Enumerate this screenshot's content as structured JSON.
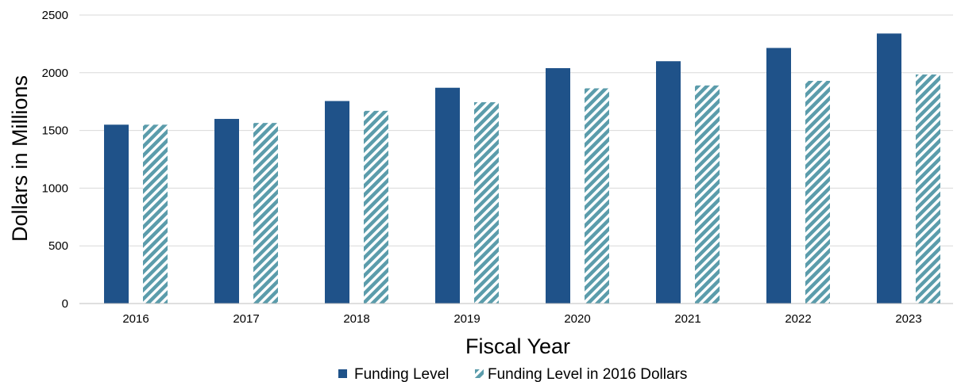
{
  "chart_data": {
    "type": "bar",
    "title": "",
    "xlabel": "Fiscal Year",
    "ylabel": "Dollars in Millions",
    "categories": [
      "2016",
      "2017",
      "2018",
      "2019",
      "2020",
      "2021",
      "2022",
      "2023"
    ],
    "series": [
      {
        "name": "Funding Level",
        "values": [
          1550,
          1600,
          1755,
          1870,
          2040,
          2100,
          2215,
          2340
        ],
        "color": "#1f5289",
        "pattern": "solid"
      },
      {
        "name": "Funding Level in 2016 Dollars",
        "values": [
          1550,
          1565,
          1670,
          1745,
          1865,
          1890,
          1930,
          1985
        ],
        "color": "#5b9cab",
        "pattern": "diagonal-stripes"
      }
    ],
    "ylim": [
      0,
      2500
    ],
    "yticks": [
      0,
      500,
      1000,
      1500,
      2000,
      2500
    ],
    "grid": true,
    "legend_position": "bottom"
  }
}
